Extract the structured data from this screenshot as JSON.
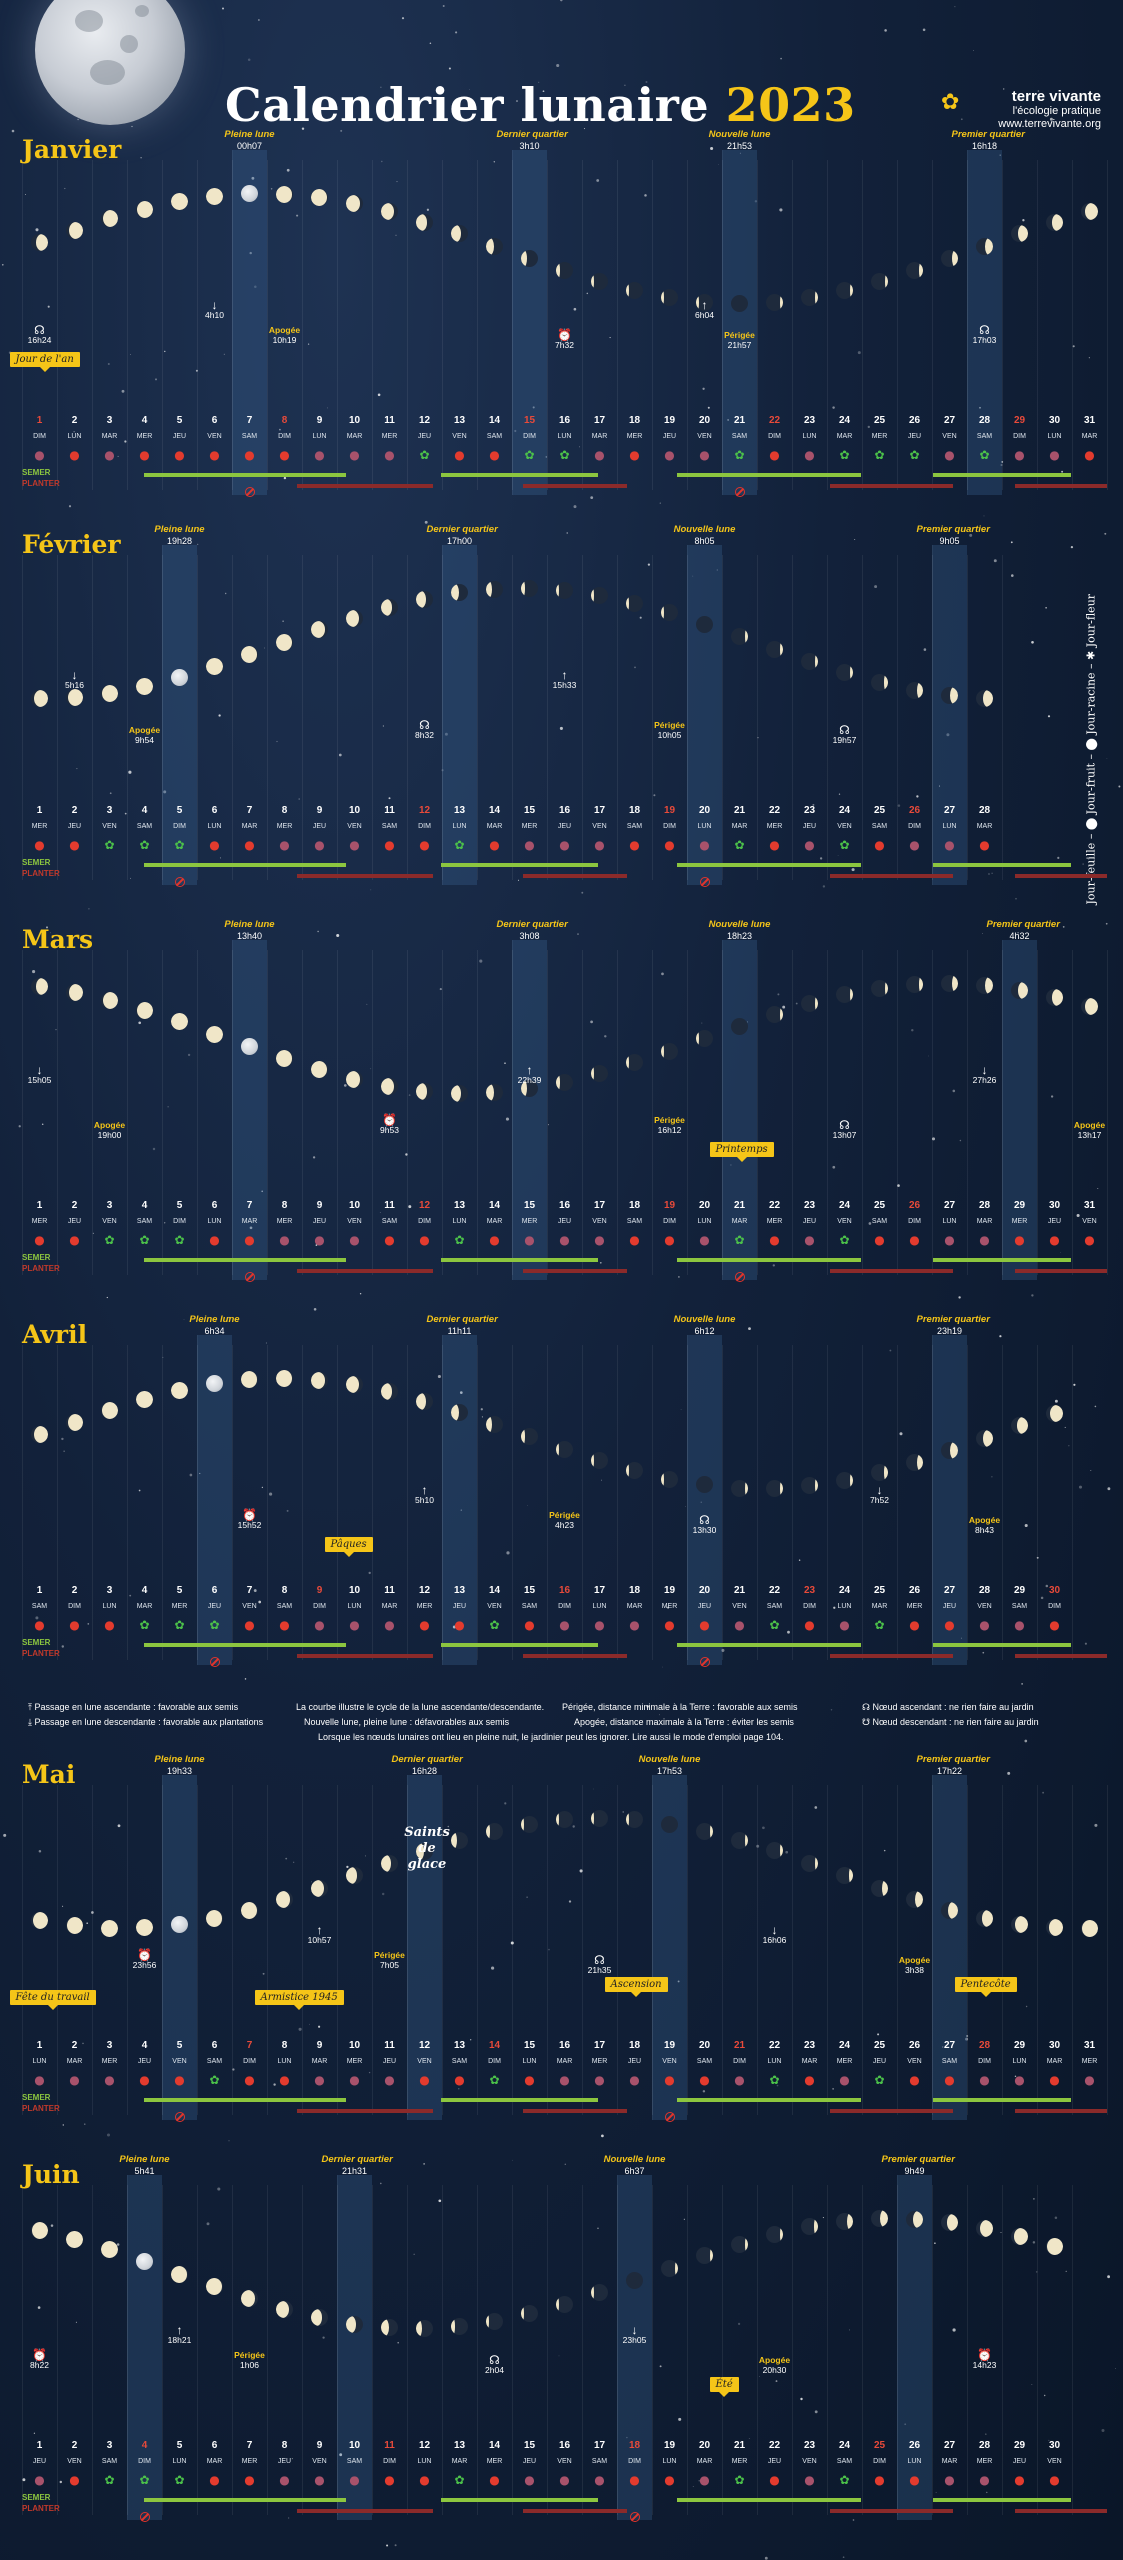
{
  "header": {
    "title": "Calendrier lunaire",
    "year": "2023",
    "brand_name": "terre vivante",
    "brand_tagline": "l'écologie pratique",
    "brand_url": "www.terrevivante.org"
  },
  "side_legend": "Jour-feuille – ⬤ Jour-fruit – ⬤ Jour-racine – ✱ Jour-fleur",
  "labels": {
    "semer": "SEMER",
    "planter": "PLANTER"
  },
  "months": [
    {
      "name": "Janvier",
      "days": 31,
      "start_weekday": 0,
      "red_days": [
        1,
        8,
        15,
        22,
        29
      ],
      "phases": [
        {
          "day": 7,
          "name": "Pleine lune",
          "time": "00h07",
          "type": "full"
        },
        {
          "day": 15,
          "name": "Dernier quartier",
          "time": "3h10",
          "type": "last"
        },
        {
          "day": 21,
          "name": "Nouvelle lune",
          "time": "21h53",
          "type": "new"
        },
        {
          "day": 28,
          "name": "Premier quartier",
          "time": "16h18",
          "type": "first"
        }
      ],
      "events": [
        {
          "day": 1,
          "sym": "☊",
          "label": "",
          "time": "16h24"
        },
        {
          "day": 6,
          "sym": "↓",
          "label": "",
          "time": "4h10"
        },
        {
          "day": 8,
          "sym": "",
          "label": "Apogée",
          "time": "10h19"
        },
        {
          "day": 16,
          "sym": "⏰",
          "label": "",
          "time": "7h32"
        },
        {
          "day": 20,
          "sym": "↑",
          "label": "",
          "time": "6h04"
        },
        {
          "day": 21,
          "sym": "",
          "label": "Périgée",
          "time": "21h57"
        },
        {
          "day": 28,
          "sym": "☊",
          "label": "",
          "time": "17h03"
        }
      ],
      "tags": [
        {
          "day": 1,
          "text": "Jour de l'an"
        }
      ],
      "icons": "rfrfffffrrrlffllrfrrlfrlllrlrrf"
    },
    {
      "name": "Février",
      "days": 28,
      "start_weekday": 3,
      "red_days": [
        12,
        19,
        26
      ],
      "phases": [
        {
          "day": 5,
          "name": "Pleine lune",
          "time": "19h28",
          "type": "full"
        },
        {
          "day": 13,
          "name": "Dernier quartier",
          "time": "17h00",
          "type": "last"
        },
        {
          "day": 20,
          "name": "Nouvelle lune",
          "time": "8h05",
          "type": "new"
        },
        {
          "day": 27,
          "name": "Premier quartier",
          "time": "9h05",
          "type": "first"
        }
      ],
      "events": [
        {
          "day": 2,
          "sym": "↓",
          "label": "",
          "time": "5h16"
        },
        {
          "day": 4,
          "sym": "",
          "label": "Apogée",
          "time": "9h54"
        },
        {
          "day": 12,
          "sym": "☊",
          "label": "",
          "time": "8h32"
        },
        {
          "day": 16,
          "sym": "↑",
          "label": "",
          "time": "15h33"
        },
        {
          "day": 19,
          "sym": "",
          "label": "Périgée",
          "time": "10h05"
        },
        {
          "day": 24,
          "sym": "☊",
          "label": "",
          "time": "19h57"
        }
      ],
      "tags": [],
      "icons": "fflllffrrrfflfrrrffrlfrlfrrf"
    },
    {
      "name": "Mars",
      "days": 31,
      "start_weekday": 3,
      "red_days": [
        12,
        19,
        26
      ],
      "phases": [
        {
          "day": 7,
          "name": "Pleine lune",
          "time": "13h40",
          "type": "full"
        },
        {
          "day": 15,
          "name": "Dernier quartier",
          "time": "3h08",
          "type": "last"
        },
        {
          "day": 21,
          "name": "Nouvelle lune",
          "time": "18h23",
          "type": "new"
        },
        {
          "day": 29,
          "name": "Premier quartier",
          "time": "4h32",
          "type": "first"
        }
      ],
      "events": [
        {
          "day": 1,
          "sym": "↓",
          "label": "",
          "time": "15h05"
        },
        {
          "day": 3,
          "sym": "",
          "label": "Apogée",
          "time": "19h00"
        },
        {
          "day": 11,
          "sym": "⏰",
          "label": "",
          "time": "9h53"
        },
        {
          "day": 15,
          "sym": "↑",
          "label": "",
          "time": "22h39"
        },
        {
          "day": 19,
          "sym": "",
          "label": "Périgée",
          "time": "16h12"
        },
        {
          "day": 24,
          "sym": "☊",
          "label": "",
          "time": "13h07"
        },
        {
          "day": 28,
          "sym": "↓",
          "label": "",
          "time": "27h26"
        },
        {
          "day": 31,
          "sym": "",
          "label": "Apogée",
          "time": "13h17"
        }
      ],
      "tags": [
        {
          "day": 21,
          "text": "Printemps"
        }
      ],
      "icons": "fflllffrrrfflfrrrffrlfrlffrrfff"
    },
    {
      "name": "Avril",
      "days": 30,
      "start_weekday": 6,
      "red_days": [
        9,
        16,
        23,
        30
      ],
      "phases": [
        {
          "day": 6,
          "name": "Pleine lune",
          "time": "6h34",
          "type": "full"
        },
        {
          "day": 13,
          "name": "Dernier quartier",
          "time": "11h11",
          "type": "last"
        },
        {
          "day": 20,
          "name": "Nouvelle lune",
          "time": "6h12",
          "type": "new"
        },
        {
          "day": 27,
          "name": "Premier quartier",
          "time": "23h19",
          "type": "first"
        }
      ],
      "events": [
        {
          "day": 7,
          "sym": "⏰",
          "label": "",
          "time": "15h52"
        },
        {
          "day": 12,
          "sym": "↑",
          "label": "",
          "time": "5h10"
        },
        {
          "day": 16,
          "sym": "",
          "label": "Périgée",
          "time": "4h23"
        },
        {
          "day": 20,
          "sym": "☊",
          "label": "",
          "time": "13h30"
        },
        {
          "day": 25,
          "sym": "↓",
          "label": "",
          "time": "7h52"
        },
        {
          "day": 28,
          "sym": "",
          "label": "Apogée",
          "time": "8h43"
        }
      ],
      "tags": [
        {
          "day": 10,
          "text": "Pâques"
        }
      ],
      "icons": "ffflllffrrrfflfrrrffrlfrlffrrf"
    },
    {
      "name": "Mai",
      "days": 31,
      "start_weekday": 1,
      "red_days": [
        7,
        14,
        21,
        28
      ],
      "phases": [
        {
          "day": 5,
          "name": "Pleine lune",
          "time": "19h33",
          "type": "full"
        },
        {
          "day": 12,
          "name": "Dernier quartier",
          "time": "16h28",
          "type": "last"
        },
        {
          "day": 19,
          "name": "Nouvelle lune",
          "time": "17h53",
          "type": "new"
        },
        {
          "day": 27,
          "name": "Premier quartier",
          "time": "17h22",
          "type": "first"
        }
      ],
      "events": [
        {
          "day": 4,
          "sym": "⏰",
          "label": "",
          "time": "23h56"
        },
        {
          "day": 9,
          "sym": "↑",
          "label": "",
          "time": "10h57"
        },
        {
          "day": 11,
          "sym": "",
          "label": "Périgée",
          "time": "7h05"
        },
        {
          "day": 17,
          "sym": "☊",
          "label": "",
          "time": "21h35"
        },
        {
          "day": 22,
          "sym": "↓",
          "label": "",
          "time": "16h06"
        },
        {
          "day": 26,
          "sym": "",
          "label": "Apogée",
          "time": "3h38"
        }
      ],
      "tags": [
        {
          "day": 1,
          "text": "Fête du travail"
        },
        {
          "day": 8,
          "text": "Armistice 1945"
        },
        {
          "day": 18,
          "text": "Ascension"
        },
        {
          "day": 28,
          "text": "Pentecôte"
        }
      ],
      "note": {
        "day": 12,
        "text": "Saints de glace"
      },
      "icons": "rrrfflffrrrfflfrrrffrlfrlffrrfr"
    },
    {
      "name": "Juin",
      "days": 30,
      "start_weekday": 4,
      "red_days": [
        4,
        11,
        18,
        25
      ],
      "phases": [
        {
          "day": 4,
          "name": "Pleine lune",
          "time": "5h41",
          "type": "full"
        },
        {
          "day": 10,
          "name": "Dernier quartier",
          "time": "21h31",
          "type": "last"
        },
        {
          "day": 18,
          "name": "Nouvelle lune",
          "time": "6h37",
          "type": "new"
        },
        {
          "day": 26,
          "name": "Premier quartier",
          "time": "9h49",
          "type": "first"
        }
      ],
      "events": [
        {
          "day": 1,
          "sym": "⏰",
          "label": "",
          "time": "8h22"
        },
        {
          "day": 5,
          "sym": "↑",
          "label": "",
          "time": "18h21"
        },
        {
          "day": 7,
          "sym": "",
          "label": "Périgée",
          "time": "1h06"
        },
        {
          "day": 14,
          "sym": "☊",
          "label": "",
          "time": "2h04"
        },
        {
          "day": 18,
          "sym": "↓",
          "label": "",
          "time": "23h05"
        },
        {
          "day": 22,
          "sym": "",
          "label": "Apogée",
          "time": "20h30"
        },
        {
          "day": 28,
          "sym": "⏰",
          "label": "",
          "time": "14h23"
        }
      ],
      "tags": [
        {
          "day": 21,
          "text": "Été"
        }
      ],
      "icons": "rflllffrrrfflfrrrffrlfrlffrrff"
    }
  ],
  "weekday_abbr": [
    "DIM",
    "LUN",
    "MAR",
    "MER",
    "JEU",
    "VEN",
    "SAM"
  ],
  "legend": {
    "asc": "Passage en lune ascendante : favorable aux semis",
    "desc": "Passage en lune descendante : favorable aux plantations",
    "curve": "La courbe illustre le cycle de la lune ascendante/descendante.",
    "newfull": "Nouvelle lune, pleine lune : défavorables aux semis",
    "perigee": "Périgée, distance minimale à la Terre : favorable aux semis",
    "apogee": "Apogée, distance maximale à la Terre : éviter les semis",
    "node_asc": "Nœud ascendant : ne rien faire au jardin",
    "node_desc": "Nœud descendant : ne rien faire au jardin",
    "note": "Lorsque les nœuds lunaires ont lieu en pleine nuit, le jardinier peut les ignorer. Lire aussi le mode d'emploi page 104."
  },
  "colors": {
    "accent": "#f5c518",
    "background": "#0f1e35",
    "semer": "#8cc63f",
    "planter": "#8b2a2a",
    "red": "#e84a3a"
  }
}
